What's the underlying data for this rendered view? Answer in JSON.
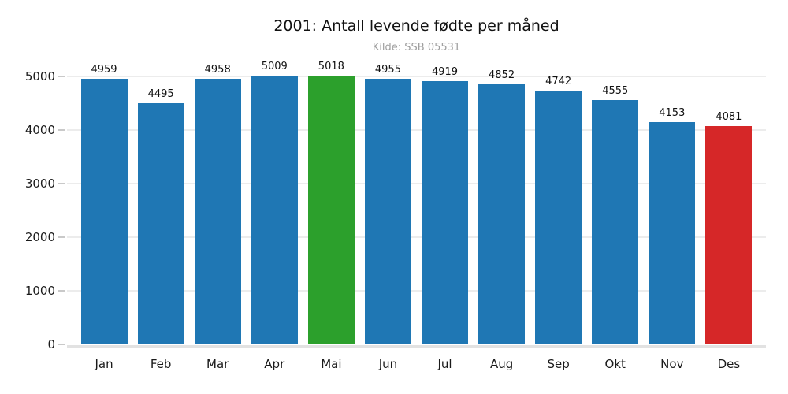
{
  "title": "2001: Antall levende fødte per måned",
  "subtitle": "Kilde: SSB 05531",
  "colors": {
    "bar_default": "#1f77b4",
    "bar_max": "#2ca02c",
    "bar_min": "#d62728",
    "gridline": "#ececec",
    "subtitle_text": "#9e9e9e"
  },
  "chart_data": {
    "type": "bar",
    "title": "2001: Antall levende fødte per måned",
    "subtitle": "Kilde: SSB 05531",
    "categories": [
      "Jan",
      "Feb",
      "Mar",
      "Apr",
      "Mai",
      "Jun",
      "Jul",
      "Aug",
      "Sep",
      "Okt",
      "Nov",
      "Des"
    ],
    "values": [
      4959,
      4495,
      4958,
      5009,
      5018,
      4955,
      4919,
      4852,
      4742,
      4555,
      4153,
      4081
    ],
    "bar_colors": [
      "#1f77b4",
      "#1f77b4",
      "#1f77b4",
      "#1f77b4",
      "#2ca02c",
      "#1f77b4",
      "#1f77b4",
      "#1f77b4",
      "#1f77b4",
      "#1f77b4",
      "#1f77b4",
      "#d62728"
    ],
    "value_labels": [
      4959,
      4495,
      4958,
      5009,
      5018,
      4955,
      4919,
      4852,
      4742,
      4555,
      4153,
      4081
    ],
    "xlabel": "",
    "ylabel": "",
    "yticks": [
      0,
      1000,
      2000,
      3000,
      4000,
      5000
    ],
    "ylim": [
      0,
      5545
    ],
    "grid": true,
    "legend": false
  }
}
